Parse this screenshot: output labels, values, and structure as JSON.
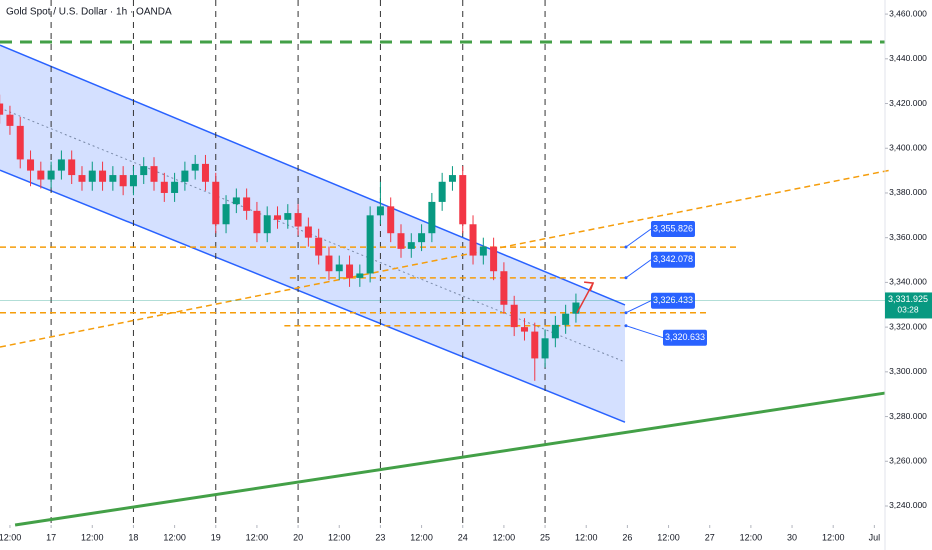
{
  "chart_data": {
    "type": "candlestick",
    "title": "Gold Spot / U.S. Dollar · 1h · OANDA",
    "x": [
      -3,
      0,
      3,
      6,
      9,
      12,
      15,
      18,
      21,
      24,
      27,
      30,
      33,
      36,
      39,
      42,
      45,
      48,
      51,
      54,
      57,
      60,
      63,
      66,
      69,
      72,
      75,
      78,
      81,
      84,
      87,
      90,
      93,
      96,
      99,
      102,
      105,
      108,
      111,
      114,
      117,
      120,
      123,
      126,
      129,
      132,
      135,
      138,
      141,
      144,
      147,
      150,
      153,
      156,
      159,
      162,
      165
    ],
    "open": [
      3420,
      3415,
      3410,
      3395,
      3390,
      3386,
      3390,
      3395,
      3388,
      3385,
      3390,
      3385,
      3388,
      3383,
      3388,
      3392,
      3385,
      3380,
      3385,
      3390,
      3393,
      3385,
      3366,
      3375,
      3378,
      3372,
      3362,
      3370,
      3368,
      3371,
      3365,
      3360,
      3352,
      3345,
      3348,
      3342,
      3344,
      3370,
      3374,
      3362,
      3355,
      3358,
      3362,
      3376,
      3385,
      3388,
      3366,
      3352,
      3356,
      3345,
      3330,
      3320,
      3318,
      3306,
      3315,
      3321,
      3326
    ],
    "high": [
      3424,
      3419,
      3414,
      3399,
      3394,
      3394,
      3399,
      3399,
      3392,
      3394,
      3394,
      3392,
      3392,
      3392,
      3396,
      3396,
      3389,
      3389,
      3394,
      3397,
      3397,
      3389,
      3379,
      3382,
      3382,
      3376,
      3374,
      3374,
      3375,
      3375,
      3369,
      3364,
      3356,
      3352,
      3352,
      3348,
      3374,
      3385,
      3378,
      3366,
      3362,
      3366,
      3380,
      3389,
      3392,
      3392,
      3370,
      3360,
      3360,
      3349,
      3334,
      3324,
      3322,
      3319,
      3325,
      3330,
      3335
    ],
    "low": [
      3411,
      3406,
      3391,
      3383,
      3382,
      3382,
      3386,
      3384,
      3381,
      3381,
      3381,
      3381,
      3379,
      3379,
      3384,
      3381,
      3376,
      3376,
      3381,
      3386,
      3381,
      3362,
      3362,
      3371,
      3368,
      3358,
      3358,
      3364,
      3364,
      3361,
      3356,
      3348,
      3341,
      3341,
      3338,
      3338,
      3340,
      3366,
      3358,
      3351,
      3351,
      3354,
      3358,
      3372,
      3381,
      3362,
      3348,
      3348,
      3341,
      3326,
      3316,
      3314,
      3296,
      3302,
      3311,
      3317,
      3322
    ],
    "close": [
      3415,
      3410,
      3395,
      3390,
      3386,
      3390,
      3395,
      3388,
      3385,
      3390,
      3385,
      3388,
      3383,
      3388,
      3392,
      3385,
      3380,
      3385,
      3390,
      3393,
      3385,
      3366,
      3375,
      3378,
      3372,
      3362,
      3370,
      3368,
      3371,
      3365,
      3360,
      3352,
      3345,
      3348,
      3342,
      3344,
      3370,
      3374,
      3362,
      3355,
      3358,
      3362,
      3376,
      3385,
      3388,
      3366,
      3352,
      3356,
      3345,
      3330,
      3320,
      3318,
      3306,
      3315,
      3321,
      3326,
      3331
    ],
    "up_color": "#089981",
    "down_color": "#f23645",
    "xlim": [
      -2.9,
      255.1
    ],
    "ylim": [
      3231.5,
      3466.3
    ],
    "xticks": [
      {
        "value": 0,
        "label": "12:00"
      },
      {
        "value": 12,
        "label": "17"
      },
      {
        "value": 24,
        "label": "12:00"
      },
      {
        "value": 36,
        "label": "18"
      },
      {
        "value": 48,
        "label": "12:00"
      },
      {
        "value": 60,
        "label": "19"
      },
      {
        "value": 72,
        "label": "12:00"
      },
      {
        "value": 84,
        "label": "20"
      },
      {
        "value": 96,
        "label": "12:00"
      },
      {
        "value": 108,
        "label": "23"
      },
      {
        "value": 120,
        "label": "12:00"
      },
      {
        "value": 132,
        "label": "24"
      },
      {
        "value": 144,
        "label": "12:00"
      },
      {
        "value": 156,
        "label": "25"
      },
      {
        "value": 168,
        "label": "12:00"
      },
      {
        "value": 180,
        "label": "26"
      },
      {
        "value": 192,
        "label": "12:00"
      },
      {
        "value": 204,
        "label": "27"
      },
      {
        "value": 216,
        "label": "12:00"
      },
      {
        "value": 228,
        "label": "30"
      },
      {
        "value": 240,
        "label": "12:00"
      },
      {
        "value": 252,
        "label": "Jul"
      }
    ],
    "yticks": [
      {
        "value": 3240,
        "label": "3,240.000"
      },
      {
        "value": 3260,
        "label": "3,260.000"
      },
      {
        "value": 3280,
        "label": "3,280.000"
      },
      {
        "value": 3300,
        "label": "3,300.000"
      },
      {
        "value": 3320,
        "label": "3,320.000"
      },
      {
        "value": 3340,
        "label": "3,340.000"
      },
      {
        "value": 3360,
        "label": "3,360.000"
      },
      {
        "value": 3380,
        "label": "3,380.000"
      },
      {
        "value": 3400,
        "label": "3,400.000"
      },
      {
        "value": 3420,
        "label": "3,420.000"
      },
      {
        "value": 3440,
        "label": "3,440.000"
      },
      {
        "value": 3460,
        "label": "3,460.000"
      }
    ],
    "vlines": [
      12,
      36,
      60,
      84,
      108,
      132,
      156
    ],
    "channel": {
      "upper": {
        "x": [
          -2.9,
          179.3
        ],
        "y": [
          3446.1,
          3329.9
        ]
      },
      "lower": {
        "x": [
          -2.9,
          179.3
        ],
        "y": [
          3390.2,
          3277.5
        ]
      },
      "mid": {
        "x": [
          -2.9,
          179.3
        ],
        "y": [
          3418,
          3304.4
        ]
      },
      "color": "#2962ff"
    },
    "lines": [
      {
        "x": [
          -2.9,
          255.1
        ],
        "y": [
          3447.5,
          3447.5
        ],
        "color": "#43a047",
        "dash": true,
        "width": 3
      },
      {
        "x": [
          1.5,
          255.1
        ],
        "y": [
          3231.5,
          3290.5
        ],
        "color": "#43a047",
        "dash": false,
        "width": 3
      },
      {
        "x": [
          -2.9,
          256.6
        ],
        "y": [
          3311.1,
          3390.2
        ],
        "color": "#f59d0b",
        "dash": true,
        "width": 1.5
      },
      {
        "x": [
          -2.9,
          212.8
        ],
        "y": [
          3355.8,
          3355.8
        ],
        "color": "#f59d0b",
        "dash": true,
        "width": 1.5
      },
      {
        "x": [
          81.6,
          179.3
        ],
        "y": [
          3342,
          3342
        ],
        "color": "#f59d0b",
        "dash": true,
        "width": 1.5
      },
      {
        "x": [
          -2.9,
          204
        ],
        "y": [
          3326.4,
          3326.4
        ],
        "color": "#f59d0b",
        "dash": true,
        "width": 1.5
      },
      {
        "x": [
          80,
          179.3
        ],
        "y": [
          3320.6,
          3320.6
        ],
        "color": "#f59d0b",
        "dash": true,
        "width": 1.5
      }
    ],
    "arrow": {
      "x": [
        165.3,
        170
      ],
      "y": [
        3326.3,
        3339.7
      ],
      "color": "#e53935"
    },
    "annotations": [
      {
        "value": 3355.826,
        "label": "3,355.826"
      },
      {
        "value": 3342.078,
        "label": "3,342.078"
      },
      {
        "value": 3326.433,
        "label": "3,326.433"
      },
      {
        "value": 3320.633,
        "label": "3,320.633"
      }
    ],
    "annotation_x": 179.3,
    "last_price": {
      "value": 3331.925,
      "label": "3,331.925",
      "countdown": "03:28",
      "color": "#089981"
    }
  }
}
